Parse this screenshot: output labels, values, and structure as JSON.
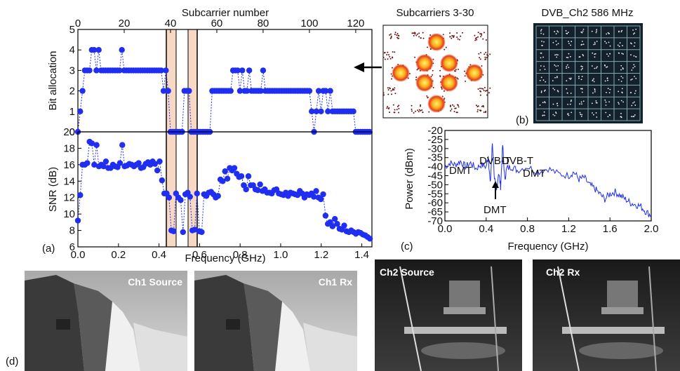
{
  "panel_labels": {
    "a": "(a)",
    "b": "(b)",
    "c": "(c)",
    "d": "(d)"
  },
  "photos": {
    "ch1_source": "Ch1 Source",
    "ch1_rx": "Ch1 Rx",
    "ch2_source": "Ch2 Source",
    "ch2_rx": "Ch2 Rx"
  },
  "constellation_title": "Subcarriers 3-30",
  "dvb_constellation_title": "DVB_Ch2 586 MHz",
  "colors": {
    "series": "#1f2ef0",
    "highlight": "#f6d8c4",
    "photo_gray": "#8c8c8c"
  },
  "chart_data": [
    {
      "id": "bit-allocation",
      "type": "line",
      "title": "",
      "xlabel_top": "Subcarrier number",
      "ylabel": "Bit allocation",
      "xlim": [
        0,
        127
      ],
      "ylim": [
        0,
        5
      ],
      "x_ticks": [
        "0",
        "20",
        "40",
        "60",
        "80",
        "100",
        "120"
      ],
      "y_ticks": [
        "0",
        "1",
        "2",
        "3",
        "4",
        "5"
      ],
      "markers": true,
      "dashed": true,
      "values": [
        0,
        1,
        2,
        3,
        3,
        3,
        4,
        4,
        3,
        4,
        3,
        3,
        3,
        3,
        3,
        3,
        3,
        3,
        3,
        4,
        3,
        3,
        3,
        3,
        3,
        3,
        3,
        3,
        3,
        3,
        3,
        3,
        3,
        3,
        3,
        3,
        3,
        2,
        3,
        2,
        0,
        0,
        0,
        0,
        0,
        0,
        2,
        2,
        2,
        0,
        0,
        0,
        0,
        0,
        0,
        0,
        0,
        0,
        2,
        2,
        2,
        2,
        2,
        2,
        2,
        2,
        2,
        3,
        3,
        3,
        2,
        3,
        2,
        2,
        3,
        2,
        2,
        2,
        2,
        2,
        3,
        2,
        2,
        2,
        2,
        2,
        2,
        2,
        2,
        2,
        2,
        2,
        2,
        2,
        2,
        2,
        2,
        2,
        2,
        2,
        2,
        1,
        0,
        1,
        2,
        1,
        2,
        2,
        1,
        2,
        1,
        1,
        1,
        1,
        1,
        1,
        1,
        1,
        1,
        1,
        0,
        0,
        0,
        0,
        0,
        0,
        0
      ]
    },
    {
      "id": "snr",
      "type": "line",
      "title": "",
      "xlabel": "Frequency (GHz)",
      "ylabel": "SNR (dB)",
      "xlim": [
        0,
        1.45
      ],
      "ylim": [
        6,
        20
      ],
      "x_ticks": [
        "0.0",
        "0.2",
        "0.4",
        "0.6",
        "0.8",
        "1.0",
        "1.2",
        "1.4"
      ],
      "y_ticks": [
        "6",
        "8",
        "10",
        "12",
        "14",
        "16",
        "18",
        "20"
      ],
      "markers": true,
      "dashed": true,
      "values": [
        9.2,
        12.3,
        16.0,
        16.0,
        16.2,
        18.8,
        18.6,
        16.0,
        18.4,
        15.8,
        16.0,
        15.8,
        16.4,
        15.6,
        15.6,
        16.0,
        15.8,
        15.7,
        16.2,
        18.4,
        15.8,
        15.9,
        16.1,
        16.0,
        15.8,
        16.0,
        16.2,
        15.6,
        15.7,
        16.1,
        16.3,
        16.0,
        16.4,
        16.1,
        15.3,
        16.4,
        14.1,
        12.5,
        12.5,
        12.0,
        8.0,
        7.9,
        12.5,
        12.0,
        11.7,
        7.8,
        12.4,
        12.6,
        12.1,
        8.0,
        8.1,
        12.5,
        7.9,
        7.8,
        12.4,
        12.2,
        12.6,
        12.7,
        12.4,
        12.0,
        12.2,
        14.2,
        14.0,
        15.2,
        14.3,
        15.6,
        15.3,
        15.6,
        14.9,
        14.5,
        14.6,
        13.5,
        13.0,
        14.6,
        13.5,
        13.5,
        13.0,
        12.9,
        13.6,
        12.8,
        13.0,
        12.6,
        12.6,
        12.5,
        12.9,
        13.0,
        12.5,
        12.4,
        12.3,
        12.6,
        12.2,
        12.6,
        12.5,
        12.4,
        12.3,
        12.8,
        12.5,
        12.0,
        12.4,
        12.3,
        12.5,
        12.1,
        12.8,
        12.0,
        11.8,
        12.4,
        9.8,
        8.8,
        9.0,
        8.5,
        9.4,
        8.8,
        8.2,
        8.1,
        8.6,
        7.9,
        7.8,
        8.0,
        7.8,
        7.6,
        7.8,
        7.7,
        7.5,
        7.4,
        7.2,
        7.0
      ]
    },
    {
      "id": "power-spectrum",
      "type": "line",
      "title": "",
      "xlabel": "Frequency (GHz)",
      "ylabel": "Power (dBm)",
      "xlim": [
        0.0,
        2.0
      ],
      "ylim": [
        -70,
        -20
      ],
      "x_ticks": [
        "0.0",
        "0.4",
        "0.8",
        "1.2",
        "1.6",
        "2.0"
      ],
      "y_ticks": [
        "-20",
        "-25",
        "-30",
        "-35",
        "-40",
        "-45",
        "-50",
        "-55",
        "-60",
        "-65",
        "-70"
      ],
      "series": [
        {
          "x": [
            0.0,
            0.05,
            0.1,
            0.15,
            0.2,
            0.25,
            0.3,
            0.35,
            0.4,
            0.42,
            0.44,
            0.46,
            0.48,
            0.5,
            0.52,
            0.54,
            0.56,
            0.58,
            0.6,
            0.65,
            0.7,
            0.8,
            0.9,
            1.0,
            1.1,
            1.2,
            1.25,
            1.3,
            1.35,
            1.4,
            1.45,
            1.5,
            1.55,
            1.6,
            1.65,
            1.7,
            1.75,
            1.8,
            1.85,
            1.9,
            1.95,
            2.0
          ],
          "y": [
            -40,
            -38,
            -39,
            -37,
            -40,
            -38,
            -41,
            -39,
            -40,
            -34,
            -50,
            -27,
            -46,
            -54,
            -43,
            -51,
            -28,
            -47,
            -41,
            -40,
            -42,
            -40,
            -43,
            -41,
            -44,
            -45,
            -43,
            -47,
            -46,
            -50,
            -52,
            -55,
            -58,
            -55,
            -54,
            -56,
            -58,
            -60,
            -61,
            -62,
            -65,
            -67
          ]
        }
      ],
      "annotations": [
        "DVB-T",
        "DVB-T",
        "DMT",
        "DMT",
        "DMT"
      ]
    }
  ]
}
